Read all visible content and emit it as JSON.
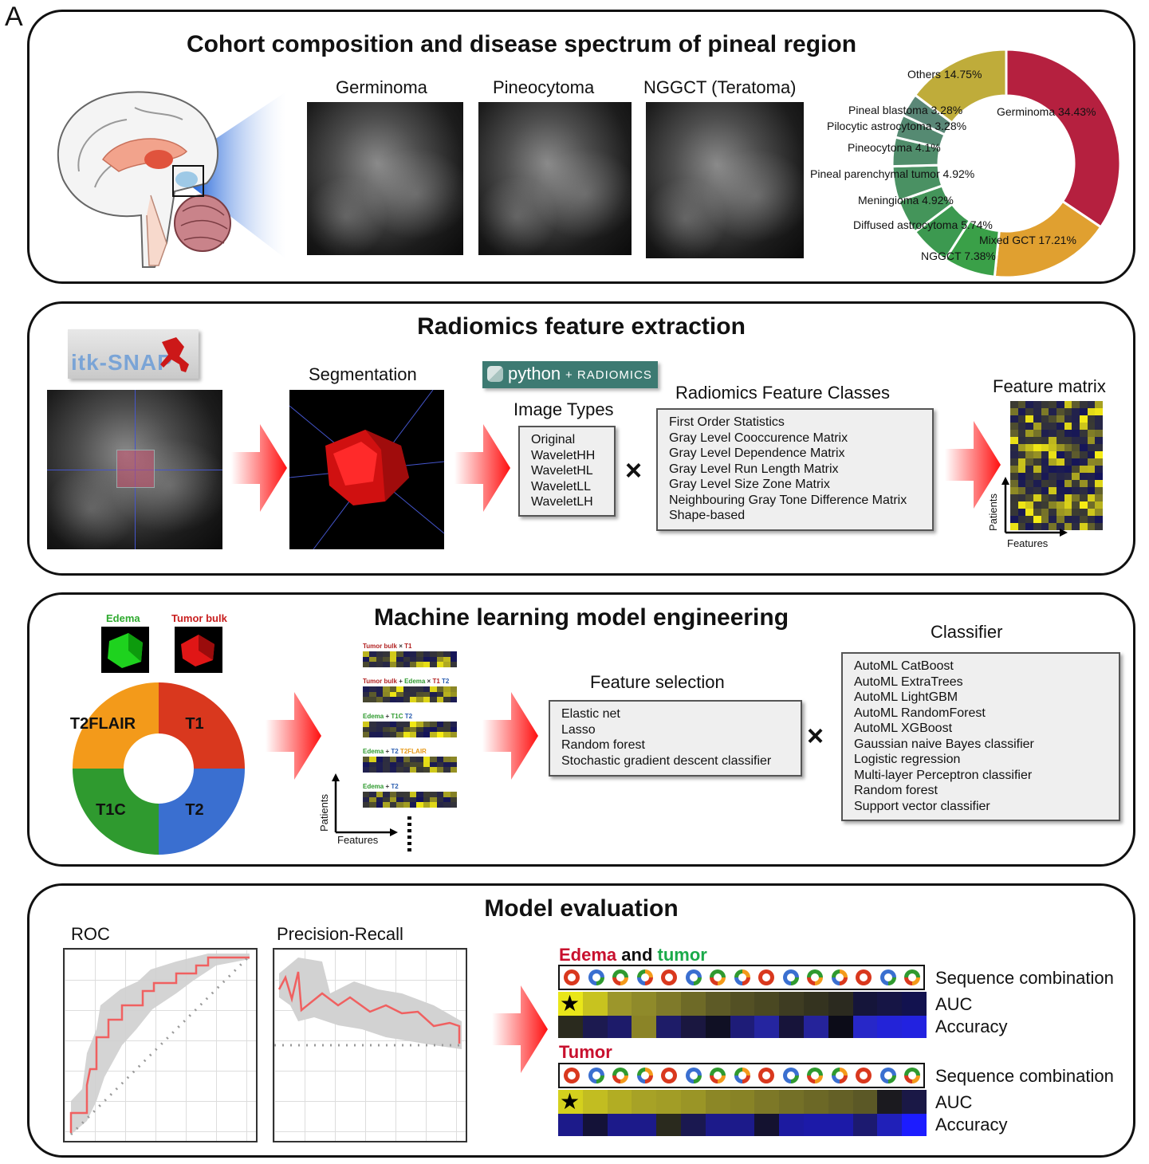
{
  "panel_letter": "A",
  "cohort": {
    "title": "Cohort composition and disease spectrum of pineal region",
    "mri_labels": [
      "Germinoma",
      "Pineocytoma",
      "NGGCT (Teratoma)"
    ],
    "donut": [
      {
        "label": "Germinoma 34.43%",
        "value": 34.43,
        "color": "#b5203f"
      },
      {
        "label": "Mixed GCT 17.21%",
        "value": 17.21,
        "color": "#e0a030"
      },
      {
        "label": "NGGCT 7.38%",
        "value": 7.38,
        "color": "#3aa048"
      },
      {
        "label": "Diffused astrocytoma 5.74%",
        "value": 5.74,
        "color": "#3c9950"
      },
      {
        "label": "Meningioma 4.92%",
        "value": 4.92,
        "color": "#44955a"
      },
      {
        "label": "Pineal parenchymal tumor 4.92%",
        "value": 4.92,
        "color": "#4a9163"
      },
      {
        "label": "Pineocytoma 4.1%",
        "value": 4.1,
        "color": "#508d6b"
      },
      {
        "label": "Pilocytic astrocytoma 3.28%",
        "value": 3.28,
        "color": "#558a72"
      },
      {
        "label": "Pineal blastoma 3.28%",
        "value": 3.28,
        "color": "#5a8777"
      },
      {
        "label": "Others 14.75%",
        "value": 14.75,
        "color": "#bfac3a"
      }
    ]
  },
  "radiomics": {
    "title": "Radiomics feature extraction",
    "itk_logo": "itk-SNAP",
    "segmentation_label": "Segmentation",
    "python_logo_main": "python",
    "python_logo_sub": "+ RADIOMICS",
    "image_types_label": "Image Types",
    "image_types": [
      "Original",
      "WaveletHH",
      "WaveletHL",
      "WaveletLL",
      "WaveletLH"
    ],
    "times": "×",
    "feature_classes_label": "Radiomics Feature Classes",
    "feature_classes": [
      "First Order Statistics",
      "Gray Level Cooccurence Matrix",
      "Gray Level Dependence Matrix",
      "Gray Level Run Length Matrix",
      "Gray Level Size Zone Matrix",
      "Neighbouring Gray Tone Difference Matrix",
      "Shape-based"
    ],
    "feature_matrix_label": "Feature matrix",
    "axis_patients": "Patients",
    "axis_features": "Features"
  },
  "ml": {
    "title": "Machine learning model engineering",
    "edema_label": "Edema",
    "tumor_bulk_label": "Tumor bulk",
    "sequences": [
      {
        "label": "T1",
        "color": "#d9381e"
      },
      {
        "label": "T2",
        "color": "#3a6fd0"
      },
      {
        "label": "T1C",
        "color": "#2f9a2f"
      },
      {
        "label": "T2FLAIR",
        "color": "#f39a1a"
      }
    ],
    "combos": [
      {
        "parts": [
          {
            "t": "Tumor bulk",
            "c": "#b22222"
          },
          {
            "t": " × ",
            "c": "#333"
          },
          {
            "t": "T1",
            "c": "#b22222"
          }
        ]
      },
      {
        "parts": [
          {
            "t": "Tumor bulk",
            "c": "#b22222"
          },
          {
            "t": " + ",
            "c": "#333"
          },
          {
            "t": "Edema",
            "c": "#2e9a2e"
          },
          {
            "t": " × ",
            "c": "#333"
          },
          {
            "t": "T1",
            "c": "#b22222"
          },
          {
            "t": " T2",
            "c": "#2a5db0"
          }
        ]
      },
      {
        "parts": [
          {
            "t": "Edema",
            "c": "#2e9a2e"
          },
          {
            "t": " + ",
            "c": "#333"
          },
          {
            "t": "T1C",
            "c": "#2e9a2e"
          },
          {
            "t": " T2",
            "c": "#2a5db0"
          }
        ]
      },
      {
        "parts": [
          {
            "t": "Edema",
            "c": "#2e9a2e"
          },
          {
            "t": " + ",
            "c": "#333"
          },
          {
            "t": "T2",
            "c": "#2a5db0"
          },
          {
            "t": " T2FLAIR",
            "c": "#e89a1a"
          }
        ]
      },
      {
        "parts": [
          {
            "t": "Edema",
            "c": "#2e9a2e"
          },
          {
            "t": " + ",
            "c": "#333"
          },
          {
            "t": "T2",
            "c": "#2a5db0"
          }
        ]
      }
    ],
    "axis_patients": "Patients",
    "axis_features": "Features",
    "feature_selection_label": "Feature selection",
    "feature_selection": [
      "Elastic net",
      "Lasso",
      "Random forest",
      "Stochastic gradient descent classifier"
    ],
    "times": "×",
    "classifier_label": "Classifier",
    "classifiers": [
      "AutoML CatBoost",
      "AutoML ExtraTrees",
      "AutoML LightGBM",
      "AutoML RandomForest",
      "AutoML XGBoost",
      "Gaussian naive Bayes classifier",
      "Logistic regression",
      "Multi-layer Perceptron classifier",
      "Random forest",
      "Support vector classifier"
    ]
  },
  "evaluation": {
    "title": "Model evaluation",
    "roc_label": "ROC",
    "pr_label": "Precision-Recall",
    "edema_word": "Edema",
    "and_word": "and",
    "tumor_word": "tumor",
    "tumor_title": "Tumor",
    "seq_label": "Sequence combination",
    "auc_label": "AUC",
    "acc_label": "Accuracy",
    "star": "★",
    "block1_auc": [
      "#e9e619",
      "#c8c31f",
      "#9c962b",
      "#8f8a2a",
      "#7f7a2a",
      "#6e6a27",
      "#5d5a26",
      "#535024",
      "#4a4822",
      "#3e3c22",
      "#34331f",
      "#2b2a1f",
      "#15153a",
      "#161545",
      "#12124f"
    ],
    "block1_acc": [
      "#2a2a1e",
      "#1c1a50",
      "#1d1b6a",
      "#8b8427",
      "#1e1c68",
      "#1a1740",
      "#101024",
      "#1e1c78",
      "#2525a0",
      "#17143a",
      "#25239a",
      "#0c0c18",
      "#2727c8",
      "#2323d8",
      "#2222e0"
    ],
    "block2_auc": [
      "#d4d01d",
      "#c2bd21",
      "#b2ad23",
      "#a7a226",
      "#a29d26",
      "#9a9526",
      "#8c8726",
      "#888326",
      "#7d7827",
      "#747027",
      "#6c6826",
      "#646026",
      "#5b5826",
      "#1b1a1f",
      "#1a1846"
    ],
    "block2_acc": [
      "#1c1a8a",
      "#141238",
      "#1c1a8a",
      "#1c1a8a",
      "#2a2a1e",
      "#1a1850",
      "#1c1a8a",
      "#1c1a8a",
      "#141230",
      "#1c1aa0",
      "#1c1aa8",
      "#1c1aa8",
      "#1c1a70",
      "#2020b8",
      "#1c1cff"
    ]
  }
}
